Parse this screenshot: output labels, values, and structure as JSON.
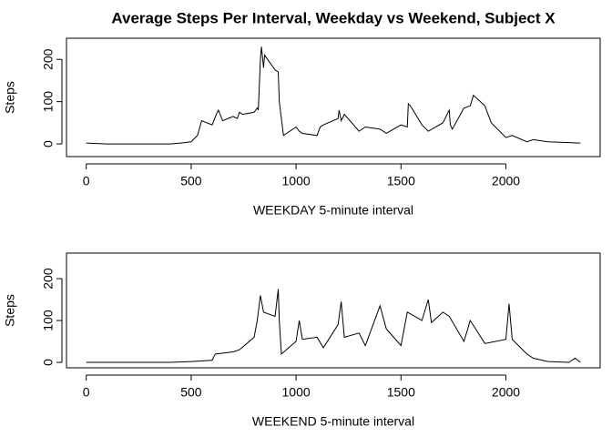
{
  "chart_data": [
    {
      "type": "line",
      "title": "Average Steps Per Interval, Weekday vs Weekend, Subject X",
      "xlabel": "WEEKDAY 5-minute interval",
      "ylabel": "Steps",
      "color": "#000000",
      "xlim": [
        -94.2,
        2449.2
      ],
      "ylim": [
        -30,
        250
      ],
      "xticks": [
        0,
        500,
        1000,
        1500,
        2000
      ],
      "yticks": [
        0,
        100,
        200
      ],
      "x": [
        0,
        100,
        200,
        300,
        400,
        450,
        500,
        530,
        550,
        600,
        620,
        630,
        650,
        700,
        720,
        730,
        745,
        800,
        815,
        820,
        830,
        835,
        845,
        850,
        900,
        915,
        920,
        930,
        940,
        1000,
        1015,
        1030,
        1100,
        1115,
        1130,
        1200,
        1205,
        1215,
        1230,
        1300,
        1330,
        1400,
        1430,
        1500,
        1530,
        1535,
        1545,
        1600,
        1630,
        1700,
        1730,
        1735,
        1745,
        1800,
        1830,
        1845,
        1900,
        1930,
        2000,
        2030,
        2100,
        2130,
        2200,
        2300,
        2355
      ],
      "values": [
        2,
        0,
        0,
        0,
        0,
        2,
        5,
        20,
        55,
        45,
        70,
        80,
        55,
        65,
        60,
        75,
        70,
        75,
        85,
        80,
        200,
        230,
        180,
        210,
        175,
        170,
        100,
        60,
        20,
        40,
        30,
        25,
        20,
        40,
        45,
        60,
        80,
        55,
        70,
        30,
        40,
        35,
        25,
        45,
        40,
        95,
        90,
        45,
        30,
        50,
        80,
        45,
        35,
        85,
        90,
        115,
        90,
        50,
        15,
        20,
        5,
        10,
        5,
        3,
        2
      ]
    },
    {
      "type": "line",
      "xlabel": "WEEKEND 5-minute interval",
      "ylabel": "Steps",
      "color": "#000000",
      "xlim": [
        -94.2,
        2449.2
      ],
      "ylim": [
        -13,
        261
      ],
      "xticks": [
        0,
        500,
        1000,
        1500,
        2000
      ],
      "yticks": [
        0,
        100,
        200
      ],
      "x": [
        0,
        100,
        200,
        300,
        400,
        500,
        600,
        615,
        700,
        730,
        800,
        815,
        830,
        845,
        900,
        915,
        920,
        930,
        1000,
        1015,
        1030,
        1100,
        1130,
        1200,
        1215,
        1230,
        1300,
        1330,
        1400,
        1430,
        1500,
        1530,
        1600,
        1630,
        1645,
        1700,
        1730,
        1800,
        1830,
        1900,
        2000,
        2015,
        2030,
        2100,
        2130,
        2200,
        2300,
        2330,
        2355
      ],
      "values": [
        0,
        0,
        0,
        0,
        0,
        2,
        5,
        20,
        25,
        30,
        60,
        100,
        160,
        120,
        110,
        175,
        100,
        20,
        50,
        100,
        55,
        60,
        35,
        90,
        145,
        60,
        70,
        40,
        135,
        80,
        40,
        120,
        100,
        150,
        95,
        120,
        110,
        50,
        100,
        45,
        55,
        140,
        55,
        20,
        10,
        2,
        0,
        10,
        0
      ]
    }
  ]
}
